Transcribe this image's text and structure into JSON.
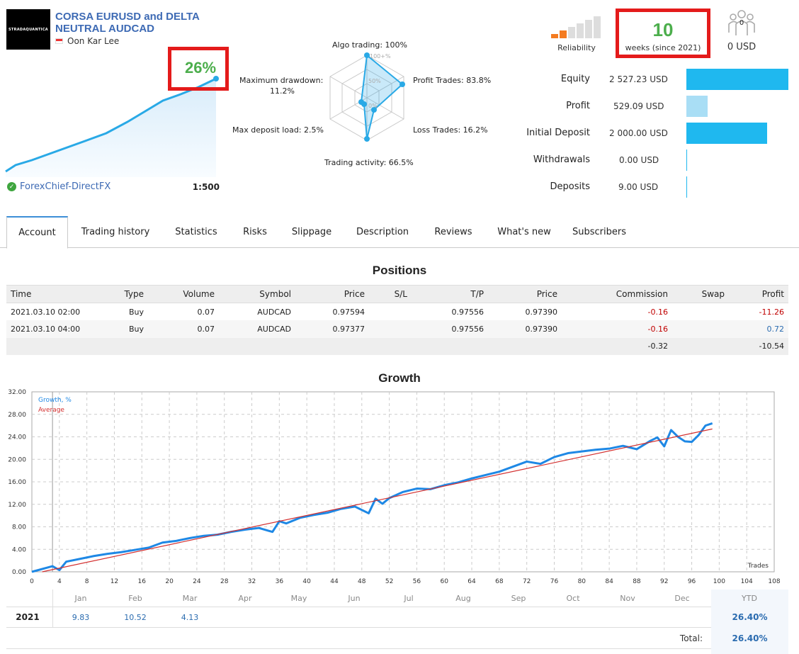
{
  "header": {
    "logo_text": "STRADAQUANTICA",
    "title": "CORSA EURUSD and DELTA NEUTRAL AUDCAD",
    "author": "Oon Kar Lee",
    "growth": "26%",
    "broker": "ForexChief-DirectFX",
    "leverage": "1:500"
  },
  "radar": {
    "algo": "Algo trading: 100%",
    "profit": "Profit Trades: 83.8%",
    "loss": "Loss Trades: 16.2%",
    "activity": "Trading activity: 66.5%",
    "deposit_load": "Max deposit load: 2.5%",
    "drawdown_label": "Maximum drawdown:",
    "drawdown_value": "11.2%",
    "ring_100": "100+%",
    "ring_50": "50%",
    "ring_0": "0%"
  },
  "reliability": {
    "label": "Reliability",
    "level_bars": 2,
    "total_bars": 6
  },
  "weeks": {
    "number": "10",
    "text": "weeks (since 2021)"
  },
  "subscribers": {
    "count": "0",
    "usd": "0 USD"
  },
  "stats": [
    {
      "label": "Equity",
      "value": "2 527.23 USD",
      "bar_fraction": 1.0,
      "color": "#1fb8ef"
    },
    {
      "label": "Profit",
      "value": "529.09 USD",
      "bar_fraction": 0.21,
      "color": "#a9def5"
    },
    {
      "label": "Initial Deposit",
      "value": "2 000.00 USD",
      "bar_fraction": 0.79,
      "color": "#1fb8ef"
    },
    {
      "label": "Withdrawals",
      "value": "0.00 USD",
      "bar_fraction": 0.0,
      "color": "#1fb8ef"
    },
    {
      "label": "Deposits",
      "value": "9.00 USD",
      "bar_fraction": 0.004,
      "color": "#1fb8ef"
    }
  ],
  "tabs": [
    "Account",
    "Trading history",
    "Statistics",
    "Risks",
    "Slippage",
    "Description",
    "Reviews",
    "What's new",
    "Subscribers"
  ],
  "positions": {
    "title": "Positions",
    "columns": [
      "Time",
      "Type",
      "Volume",
      "Symbol",
      "Price",
      "S/L",
      "T/P",
      "Price",
      "Commission",
      "Swap",
      "Profit"
    ],
    "rows": [
      {
        "time": "2021.03.10 02:00",
        "type": "Buy",
        "volume": "0.07",
        "symbol": "AUDCAD",
        "price": "0.97594",
        "sl": "",
        "tp": "0.97556",
        "price2": "0.97390",
        "commission": "-0.16",
        "swap": "",
        "profit": "-11.26"
      },
      {
        "time": "2021.03.10 04:00",
        "type": "Buy",
        "volume": "0.07",
        "symbol": "AUDCAD",
        "price": "0.97377",
        "sl": "",
        "tp": "0.97556",
        "price2": "0.97390",
        "commission": "-0.16",
        "swap": "",
        "profit": "0.72"
      }
    ],
    "total_commission": "-0.32",
    "total_profit": "-10.54"
  },
  "growth_title": "Growth",
  "chart_data": {
    "type": "line",
    "legend": [
      "Growth, %",
      "Average"
    ],
    "xlabel": "Trades",
    "xlim": [
      0,
      108
    ],
    "ylim": [
      0,
      32
    ],
    "x_ticks": [
      0,
      4,
      8,
      12,
      16,
      20,
      24,
      28,
      32,
      36,
      40,
      44,
      48,
      52,
      56,
      60,
      64,
      68,
      72,
      76,
      80,
      84,
      88,
      92,
      96,
      100,
      104,
      108
    ],
    "y_ticks": [
      "0.00",
      "4.00",
      "8.00",
      "12.00",
      "16.00",
      "20.00",
      "24.00",
      "28.00",
      "32.00"
    ],
    "months": [
      "Jan",
      "Feb",
      "Mar",
      "Apr",
      "May",
      "Jun",
      "Jul",
      "Aug",
      "Sep",
      "Oct",
      "Nov",
      "Dec"
    ],
    "series": [
      {
        "name": "Growth, %",
        "color": "#1e88e5",
        "x": [
          0,
          3,
          4,
          5,
          7,
          9,
          11,
          13,
          15,
          17,
          19,
          21,
          23,
          25,
          27,
          29,
          31,
          33,
          35,
          36,
          37,
          39,
          41,
          43,
          45,
          47,
          49,
          50,
          51,
          52,
          54,
          56,
          58,
          60,
          62,
          64,
          66,
          68,
          70,
          72,
          74,
          76,
          78,
          80,
          82,
          84,
          86,
          88,
          90,
          91,
          92,
          93,
          94,
          95,
          96,
          97,
          98,
          99
        ],
        "y": [
          0,
          1,
          0.3,
          1.8,
          2.3,
          2.8,
          3.2,
          3.5,
          3.9,
          4.3,
          5.2,
          5.5,
          6.0,
          6.4,
          6.6,
          7.1,
          7.5,
          7.8,
          7.1,
          9.0,
          8.6,
          9.6,
          10.1,
          10.5,
          11.2,
          11.6,
          10.4,
          13.0,
          12.1,
          13.1,
          14.2,
          14.8,
          14.7,
          15.4,
          15.9,
          16.6,
          17.2,
          17.8,
          18.7,
          19.6,
          19.2,
          20.4,
          21.1,
          21.4,
          21.7,
          21.9,
          22.4,
          21.8,
          23.3,
          23.9,
          22.3,
          25.2,
          24.0,
          23.2,
          23.1,
          24.3,
          26.0,
          26.4
        ]
      },
      {
        "name": "Average",
        "color": "#d32f2f",
        "x": [
          1.5,
          99
        ],
        "y": [
          0,
          25.4
        ]
      }
    ]
  },
  "monthly": {
    "year": "2021",
    "values": [
      "9.83",
      "10.52",
      "4.13",
      "",
      "",
      "",
      "",
      "",
      "",
      "",
      "",
      ""
    ],
    "ytd_label": "YTD",
    "ytd": "26.40%",
    "total_label": "Total:",
    "total": "26.40%"
  }
}
